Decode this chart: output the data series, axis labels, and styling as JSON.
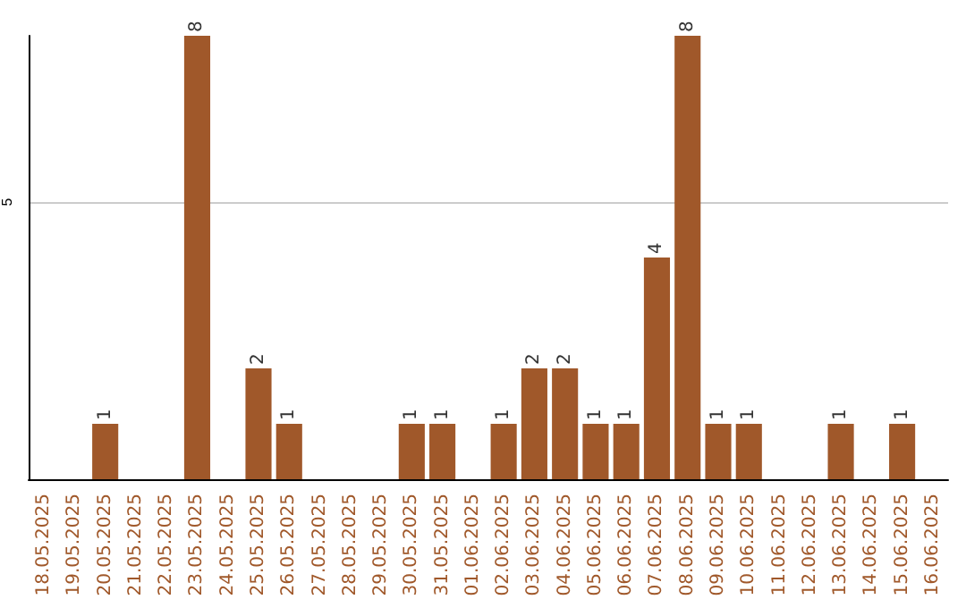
{
  "chart_data": {
    "type": "bar",
    "categories": [
      "18.05.2025",
      "19.05.2025",
      "20.05.2025",
      "21.05.2025",
      "22.05.2025",
      "23.05.2025",
      "24.05.2025",
      "25.05.2025",
      "26.05.2025",
      "27.05.2025",
      "28.05.2025",
      "29.05.2025",
      "30.05.2025",
      "31.05.2025",
      "01.06.2025",
      "02.06.2025",
      "03.06.2025",
      "04.06.2025",
      "05.06.2025",
      "06.06.2025",
      "07.06.2025",
      "08.06.2025",
      "09.06.2025",
      "10.06.2025",
      "11.06.2025",
      "12.06.2025",
      "13.06.2025",
      "14.06.2025",
      "15.06.2025",
      "16.06.2025"
    ],
    "values": [
      0,
      0,
      1,
      0,
      0,
      8,
      0,
      2,
      1,
      0,
      0,
      0,
      1,
      1,
      0,
      1,
      2,
      2,
      1,
      1,
      4,
      8,
      1,
      1,
      0,
      0,
      1,
      0,
      1,
      0
    ],
    "value_labels": [
      null,
      null,
      "1",
      null,
      null,
      "8",
      null,
      "2",
      "1",
      null,
      null,
      null,
      "1",
      "1",
      null,
      "1",
      "2",
      "2",
      "1",
      "1",
      "4",
      "8",
      "1",
      "1",
      null,
      null,
      "1",
      null,
      "1",
      null
    ],
    "color": "#a0582a",
    "ylim": [
      0,
      8
    ],
    "yticks": [
      5
    ],
    "grid": "y"
  }
}
